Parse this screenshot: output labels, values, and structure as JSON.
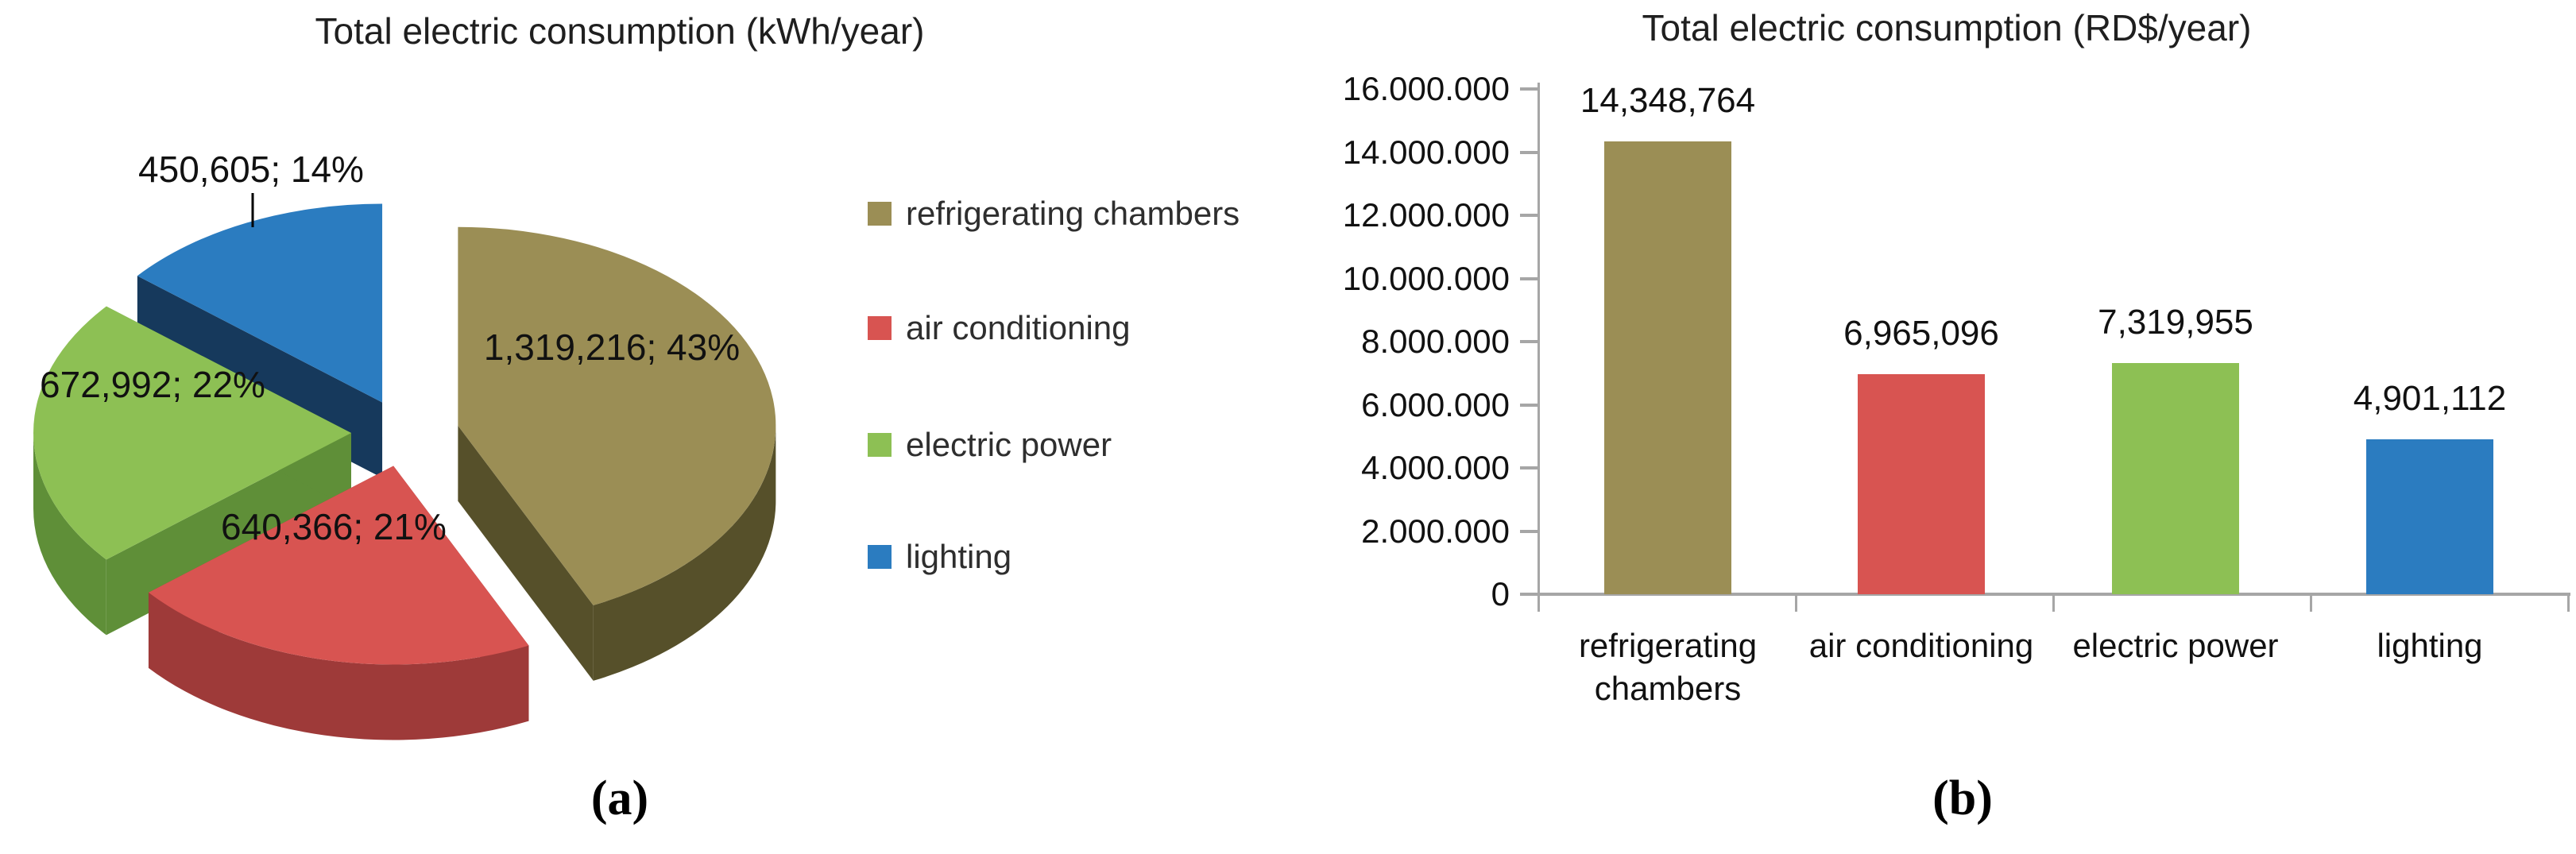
{
  "chart_data": [
    {
      "type": "pie",
      "title": "Total electric consumption (kWh/year)",
      "legend_position": "right",
      "effect": "3d-exploded",
      "caption": "(a)",
      "slices": [
        {
          "label": "refrigerating chambers",
          "value": 1319216,
          "pct": 43,
          "data_label": "1,319,216; 43%",
          "color": "#9b8e55",
          "side_color": "#56502a"
        },
        {
          "label": "air conditioning",
          "value": 640366,
          "pct": 21,
          "data_label": "640,366; 21%",
          "color": "#d85451",
          "side_color": "#9e3a39"
        },
        {
          "label": "electric power",
          "value": 672992,
          "pct": 22,
          "data_label": "672,992; 22%",
          "color": "#8dc054",
          "side_color": "#5f8f38"
        },
        {
          "label": "lighting",
          "value": 450605,
          "pct": 14,
          "data_label": "450,605; 14%",
          "color": "#2b7cc0",
          "side_color": "#16395c"
        }
      ]
    },
    {
      "type": "bar",
      "title": "Total electric consumption (RD$/year)",
      "caption": "(b)",
      "categories": [
        "refrigerating chambers",
        "air conditioning",
        "electric power",
        "lighting"
      ],
      "values": [
        14348764,
        6965096,
        7319955,
        4901112
      ],
      "data_labels": [
        "14,348,764",
        "6,965,096",
        "7,319,955",
        "4,901,112"
      ],
      "colors": [
        "#9b8e55",
        "#d85451",
        "#8dc054",
        "#2b7cc0"
      ],
      "ylim": [
        0,
        16000000
      ],
      "ytick_step": 2000000,
      "ytick_labels": [
        "0",
        "2.000.000",
        "4.000.000",
        "6.000.000",
        "8.000.000",
        "10.000.000",
        "12.000.000",
        "14.000.000",
        "16.000.000"
      ],
      "grid": false,
      "legend": "none"
    }
  ]
}
